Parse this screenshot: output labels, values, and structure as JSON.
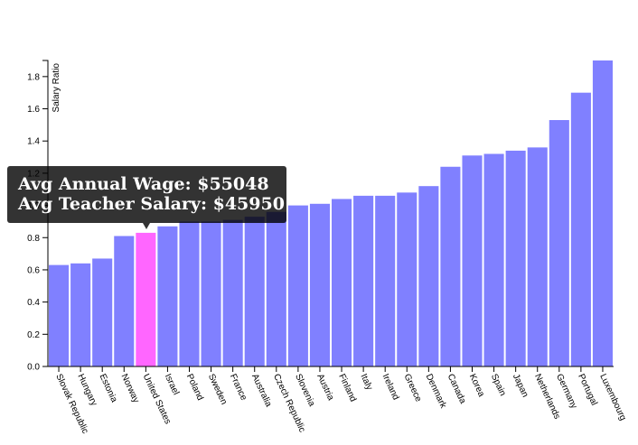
{
  "chart_data": {
    "type": "bar",
    "ylabel": "Salary Ratio",
    "ylim": [
      0,
      1.9
    ],
    "yticks": [
      0,
      0.2,
      0.4,
      0.6,
      0.8,
      1,
      1.2,
      1.4,
      1.6,
      1.8
    ],
    "ytick_labels": [
      "0.0",
      "0.2",
      "0.4",
      "0.6",
      "0.8",
      "1.0",
      "1.2",
      "1.4",
      "1.6",
      "1.8"
    ],
    "categories": [
      "Slovak Republic",
      "Hungary",
      "Estonia",
      "Norway",
      "United States",
      "Israel",
      "Poland",
      "Sweden",
      "France",
      "Australia",
      "Czech Republic",
      "Slovenia",
      "Austria",
      "Finland",
      "Italy",
      "Ireland",
      "Greece",
      "Denmark",
      "Canada",
      "Korea",
      "Spain",
      "Japan",
      "Netherlands",
      "Germany",
      "Portugal",
      "Luxembourg"
    ],
    "values": [
      0.63,
      0.64,
      0.67,
      0.81,
      0.83,
      0.87,
      0.9,
      0.9,
      0.91,
      0.93,
      0.96,
      1.0,
      1.01,
      1.04,
      1.06,
      1.06,
      1.08,
      1.12,
      1.24,
      1.31,
      1.32,
      1.34,
      1.36,
      1.53,
      1.7,
      1.9
    ],
    "bar_color": "#8080ff",
    "highlight_color": "#ff66ff",
    "highlight_index": 4,
    "grid": false
  },
  "tooltip": {
    "line1": "Avg Annual Wage: $55048",
    "line2": "Avg Teacher Salary: $45950"
  }
}
